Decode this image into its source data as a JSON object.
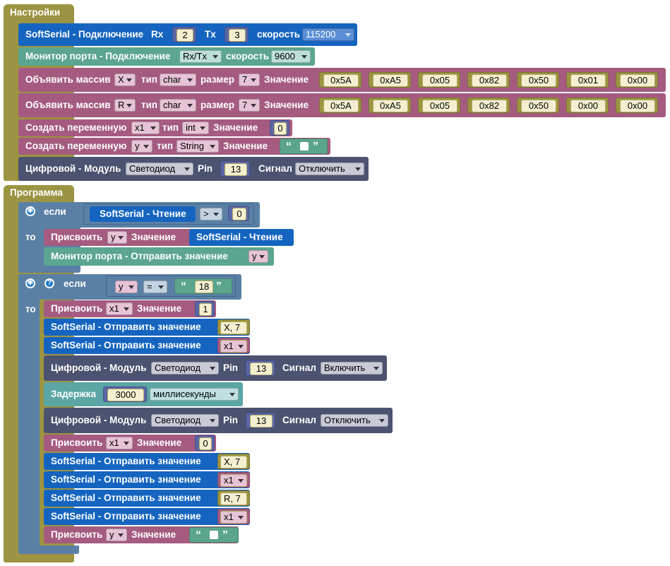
{
  "colors": {
    "setup": "#9c9442",
    "softserial": "#1565c0",
    "monitor": "#5ba591",
    "array": "#a55b80",
    "var": "#a55b80",
    "digital": "#4c5370",
    "logic": "#5b80a5",
    "delay": "#5ba5a5",
    "text": "#5ba58c",
    "math": "#5b67a5"
  },
  "setup": {
    "title": "Настройки",
    "softserial_connect": {
      "label": "SoftSerial - Подключение",
      "rx_label": "Rx",
      "rx_value": "2",
      "tx_label": "Tx",
      "tx_value": "3",
      "speed_label": "скорость",
      "speed_value": "115200"
    },
    "monitor_connect": {
      "label": "Монитор порта - Подключение",
      "mode": "Rx/Tx",
      "speed_label": "скорость",
      "speed_value": "9600"
    },
    "array_x": {
      "label": "Объявить массив",
      "name": "X",
      "type_label": "тип",
      "type": "char",
      "size_label": "размер",
      "size": "7",
      "value_label": "Значение",
      "values": [
        "0x5A",
        "0xA5",
        "0x05",
        "0x82",
        "0x50",
        "0x01",
        "0x00"
      ]
    },
    "array_r": {
      "label": "Объявить массив",
      "name": "R",
      "type_label": "тип",
      "type": "char",
      "size_label": "размер",
      "size": "7",
      "value_label": "Значение",
      "values": [
        "0x5A",
        "0xA5",
        "0x05",
        "0x82",
        "0x50",
        "0x00",
        "0x00"
      ]
    },
    "var_x1": {
      "label": "Создать переменную",
      "name": "x1",
      "type_label": "тип",
      "type": "int",
      "value_label": "Значение",
      "value": "0"
    },
    "var_y": {
      "label": "Создать переменную",
      "name": "y",
      "type_label": "тип",
      "type": "String",
      "value_label": "Значение",
      "quote_open": "“",
      "quote_close": "”"
    },
    "digital": {
      "label": "Цифровой - Модуль",
      "module": "Светодиод",
      "pin_label": "Pin",
      "pin": "13",
      "signal_label": "Сигнал",
      "signal": "Отключить"
    }
  },
  "program": {
    "title": "Программа",
    "if1": {
      "if_label": "если",
      "then_label": "то",
      "read_label": "SoftSerial - Чтение",
      "operator": ">",
      "compare_value": "0",
      "assign": {
        "label": "Присвоить",
        "var": "y",
        "value_label": "Значение",
        "read_label": "SoftSerial - Чтение"
      },
      "monitor_send": {
        "label": "Монитор порта - Отправить значение",
        "var": "y"
      }
    },
    "if2": {
      "if_label": "если",
      "then_label": "то",
      "help": "?",
      "var": "y",
      "operator": "=",
      "quote_open": "“",
      "text": "18",
      "quote_close": "”",
      "statements": [
        {
          "kind": "assign",
          "label": "Присвоить",
          "var": "x1",
          "value_label": "Значение",
          "value": "1"
        },
        {
          "kind": "send",
          "label": "SoftSerial - Отправить значение",
          "value": "X, 7"
        },
        {
          "kind": "sendvar",
          "label": "SoftSerial - Отправить значение",
          "value": "x1"
        },
        {
          "kind": "digital",
          "label": "Цифровой - Модуль",
          "module": "Светодиод",
          "pin_label": "Pin",
          "pin": "13",
          "signal_label": "Сигнал",
          "signal": "Включить"
        },
        {
          "kind": "delay",
          "label": "Задержка",
          "value": "3000",
          "unit": "миллисекунды"
        },
        {
          "kind": "digital",
          "label": "Цифровой - Модуль",
          "module": "Светодиод",
          "pin_label": "Pin",
          "pin": "13",
          "signal_label": "Сигнал",
          "signal": "Отключить"
        },
        {
          "kind": "assign",
          "label": "Присвоить",
          "var": "x1",
          "value_label": "Значение",
          "value": "0"
        },
        {
          "kind": "send",
          "label": "SoftSerial - Отправить значение",
          "value": "X, 7"
        },
        {
          "kind": "sendvar",
          "label": "SoftSerial - Отправить значение",
          "value": "x1"
        },
        {
          "kind": "send",
          "label": "SoftSerial - Отправить значение",
          "value": "R, 7"
        },
        {
          "kind": "sendvar",
          "label": "SoftSerial - Отправить значение",
          "value": "x1"
        },
        {
          "kind": "assignstr",
          "label": "Присвоить",
          "var": "y",
          "value_label": "Значение",
          "quote_open": "“",
          "quote_close": "”"
        }
      ]
    }
  }
}
